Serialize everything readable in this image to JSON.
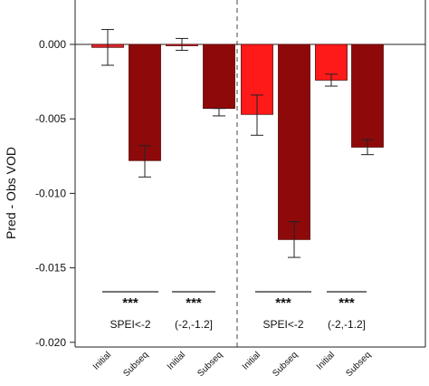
{
  "chart_data": {
    "type": "bar",
    "title": "",
    "xlabel": "",
    "ylabel": "Pred - Obs VOD",
    "ylim": [
      -0.02,
      0.002
    ],
    "yticks": [
      0.0,
      -0.005,
      -0.01,
      -0.015,
      -0.02
    ],
    "ytick_labels": [
      "0.000",
      "-0.005",
      "-0.010",
      "-0.015",
      "-0.020"
    ],
    "grid": false,
    "bars": [
      {
        "category": "Initial",
        "value": -0.0002,
        "err_low": -0.0014,
        "err_high": 0.001,
        "color": "#e2262b"
      },
      {
        "category": "Subseq",
        "value": -0.0078,
        "err_low": -0.0089,
        "err_high": -0.0068,
        "color": "#8e0a0a"
      },
      {
        "category": "Initial",
        "value": 0.0,
        "err_low": -0.0004,
        "err_high": 0.0004,
        "color": "#e2262b"
      },
      {
        "category": "Subseq",
        "value": -0.0043,
        "err_low": -0.0048,
        "err_high": -0.0043,
        "color": "#8e0a0a"
      },
      {
        "category": "Initial",
        "value": -0.0047,
        "err_low": -0.0061,
        "err_high": -0.0034,
        "color": "#ff1a1a"
      },
      {
        "category": "Subseq",
        "value": -0.0131,
        "err_low": -0.0143,
        "err_high": -0.0119,
        "color": "#8e0a0a"
      },
      {
        "category": "Initial",
        "value": -0.0024,
        "err_low": -0.0028,
        "err_high": -0.002,
        "color": "#ff1a1a"
      },
      {
        "category": "Subseq",
        "value": -0.0069,
        "err_low": -0.0074,
        "err_high": -0.0064,
        "color": "#8e0a0a"
      }
    ],
    "groups": [
      {
        "label": "SPEI<-2",
        "significance": "***"
      },
      {
        "label": "(-2,-1.2]",
        "significance": "***"
      },
      {
        "label": "SPEI<-2",
        "significance": "***"
      },
      {
        "label": "(-2,-1.2]",
        "significance": "***"
      }
    ],
    "divider": "dashed vertical line between the left and right halves"
  }
}
